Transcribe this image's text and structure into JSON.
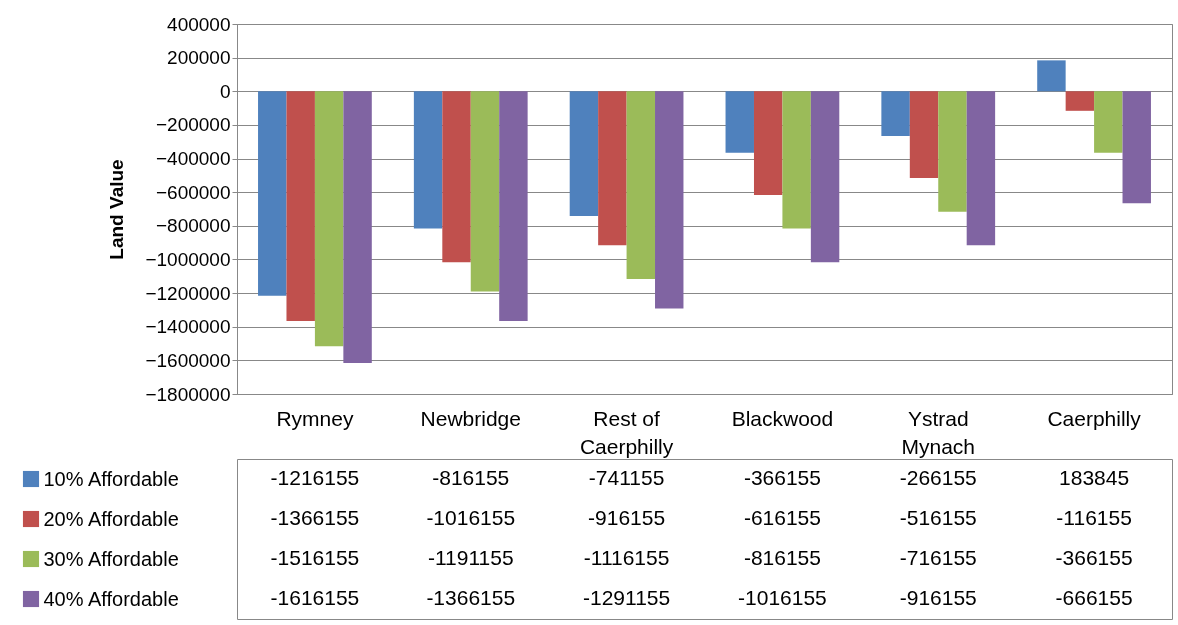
{
  "chart_data": {
    "type": "bar",
    "ylabel": "Land Value",
    "categories": [
      "Rymney",
      "Newbridge",
      "Rest of Caerphilly",
      "Blackwood",
      "Ystrad Mynach",
      "Caerphilly"
    ],
    "series": [
      {
        "name": "10% Affordable",
        "color": "#4f81bd",
        "values": [
          -1216155,
          -816155,
          -741155,
          -366155,
          -266155,
          183845
        ]
      },
      {
        "name": "20% Affordable",
        "color": "#c0504d",
        "values": [
          -1366155,
          -1016155,
          -916155,
          -616155,
          -516155,
          -116155
        ]
      },
      {
        "name": "30% Affordable",
        "color": "#9bbb59",
        "values": [
          -1516155,
          -1191155,
          -1116155,
          -816155,
          -716155,
          -366155
        ]
      },
      {
        "name": "40% Affordable",
        "color": "#8064a2",
        "values": [
          -1616155,
          -1366155,
          -1291155,
          -1016155,
          -916155,
          -666155
        ]
      }
    ],
    "ylim": [
      -1800000,
      400000
    ],
    "yticks": [
      -1800000,
      -1600000,
      -1400000,
      -1200000,
      -1000000,
      -800000,
      -600000,
      -400000,
      -200000,
      0,
      200000,
      400000
    ],
    "grid": "y",
    "legend": "bottom left",
    "data_labels": true
  }
}
